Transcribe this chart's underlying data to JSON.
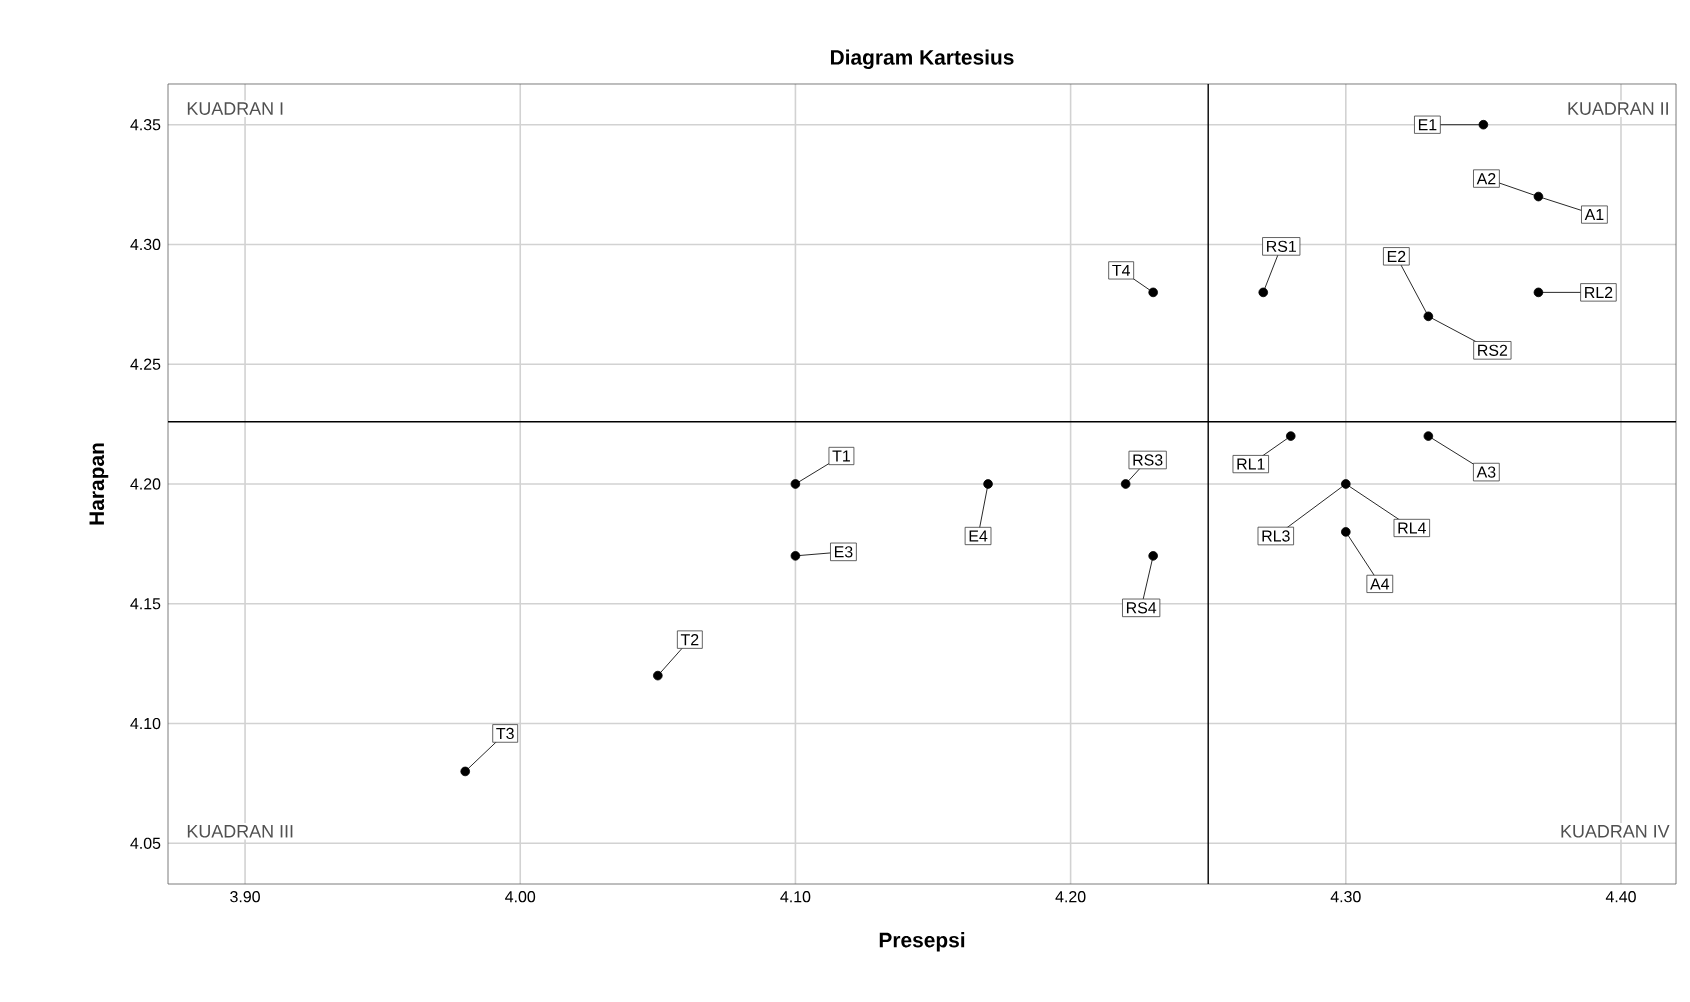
{
  "chart_data": {
    "type": "scatter",
    "title": "Diagram Kartesius",
    "xlabel": "Presepsi",
    "ylabel": "Harapan",
    "x": [
      4.35,
      4.37,
      4.37,
      4.33,
      4.27,
      4.23,
      4.28,
      4.33,
      4.3,
      4.3,
      4.22,
      4.23,
      4.1,
      4.1,
      4.17,
      4.05,
      3.98
    ],
    "series": [
      {
        "color": "#000000",
        "values": [
          4.35,
          4.32,
          4.28,
          4.27,
          4.28,
          4.28,
          4.22,
          4.22,
          4.2,
          4.18,
          4.2,
          4.17,
          4.2,
          4.17,
          4.2,
          4.12,
          4.08
        ]
      }
    ],
    "xlim": [
      3.872,
      4.42
    ],
    "ylim": [
      4.033,
      4.367
    ],
    "xticks": [
      {
        "value": 3.9,
        "label": "3.90"
      },
      {
        "value": 4.0,
        "label": "4.00"
      },
      {
        "value": 4.1,
        "label": "4.10"
      },
      {
        "value": 4.2,
        "label": "4.20"
      },
      {
        "value": 4.3,
        "label": "4.30"
      },
      {
        "value": 4.4,
        "label": "4.40"
      }
    ],
    "yticks": [
      {
        "value": 4.05,
        "label": "4.05"
      },
      {
        "value": 4.1,
        "label": "4.10"
      },
      {
        "value": 4.15,
        "label": "4.15"
      },
      {
        "value": 4.2,
        "label": "4.20"
      },
      {
        "value": 4.25,
        "label": "4.25"
      },
      {
        "value": 4.3,
        "label": "4.30"
      },
      {
        "value": 4.35,
        "label": "4.35"
      }
    ],
    "grid": true,
    "marker": "circle",
    "ref_lines": [
      {
        "axis": "x",
        "value": 4.25,
        "color": "#000000"
      },
      {
        "axis": "y",
        "value": 4.226,
        "color": "#000000"
      }
    ],
    "annotations": [
      "KUADRAN I",
      "KUADRAN II",
      "KUADRAN III",
      "KUADRAN IV",
      {
        "text": "E1",
        "x": 4.35,
        "y": 4.35
      },
      {
        "text": "A2",
        "x": 4.37,
        "y": 4.32
      },
      {
        "text": "A1",
        "x": 4.37,
        "y": 4.32
      },
      {
        "text": "RL2",
        "x": 4.37,
        "y": 4.28
      },
      {
        "text": "E2",
        "x": 4.33,
        "y": 4.27
      },
      {
        "text": "RS2",
        "x": 4.33,
        "y": 4.27
      },
      {
        "text": "RS1",
        "x": 4.27,
        "y": 4.28
      },
      {
        "text": "T4",
        "x": 4.23,
        "y": 4.28
      },
      {
        "text": "RL1",
        "x": 4.28,
        "y": 4.22
      },
      {
        "text": "A3",
        "x": 4.33,
        "y": 4.22
      },
      {
        "text": "RL3",
        "x": 4.3,
        "y": 4.2
      },
      {
        "text": "RL4",
        "x": 4.3,
        "y": 4.2
      },
      {
        "text": "A4",
        "x": 4.3,
        "y": 4.18
      },
      {
        "text": "RS3",
        "x": 4.22,
        "y": 4.2
      },
      {
        "text": "RS4",
        "x": 4.23,
        "y": 4.17
      },
      {
        "text": "T1",
        "x": 4.1,
        "y": 4.2
      },
      {
        "text": "E3",
        "x": 4.1,
        "y": 4.17
      },
      {
        "text": "E4",
        "x": 4.17,
        "y": 4.2
      },
      {
        "text": "T2",
        "x": 4.05,
        "y": 4.12
      },
      {
        "text": "T3",
        "x": 3.98,
        "y": 4.08
      }
    ]
  }
}
